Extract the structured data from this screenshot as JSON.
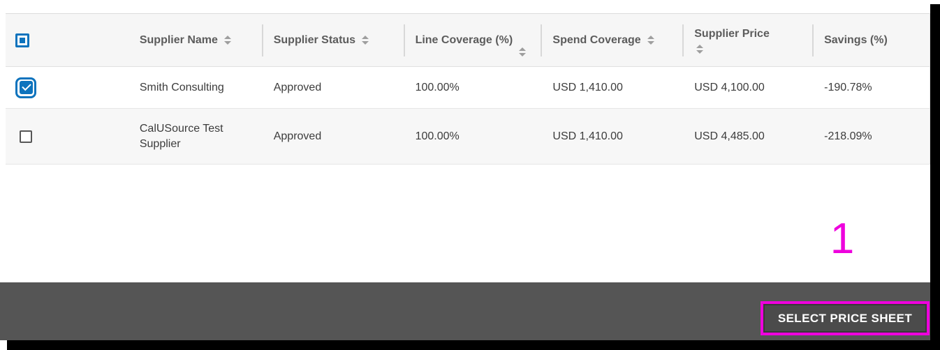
{
  "colors": {
    "accent_blue": "#0d73bd",
    "annotation_magenta": "#ee00dd",
    "footer_gray": "#555555",
    "button_gray": "#4b4b4b",
    "header_bg": "#f6f6f6",
    "row_alt_bg": "#f7f7f7"
  },
  "icons": {
    "sort": "sort-arrows",
    "checkbox_checked": "check-mark",
    "checkbox_indeterminate": "filled-square"
  },
  "table": {
    "select_all_indeterminate": true,
    "columns": [
      {
        "label": "Supplier Name",
        "sortable": true
      },
      {
        "label": "Supplier Status",
        "sortable": true
      },
      {
        "label": "Line Coverage (%)",
        "sortable": true
      },
      {
        "label": "Spend Coverage",
        "sortable": true
      },
      {
        "label": "Supplier Price",
        "sortable": true
      },
      {
        "label": "Savings (%)",
        "sortable": false
      }
    ],
    "rows": [
      {
        "checked": true,
        "supplier_name": "Smith Consulting",
        "supplier_status": "Approved",
        "line_coverage": "100.00%",
        "spend_coverage": "USD 1,410.00",
        "supplier_price": "USD 4,100.00",
        "savings": "-190.78%"
      },
      {
        "checked": false,
        "supplier_name": "CalUSource Test Supplier",
        "supplier_status": "Approved",
        "line_coverage": "100.00%",
        "spend_coverage": "USD 1,410.00",
        "supplier_price": "USD 4,485.00",
        "savings": "-218.09%"
      }
    ]
  },
  "annotation": {
    "step_number": "1"
  },
  "footer": {
    "select_button_label": "SELECT PRICE SHEET"
  }
}
